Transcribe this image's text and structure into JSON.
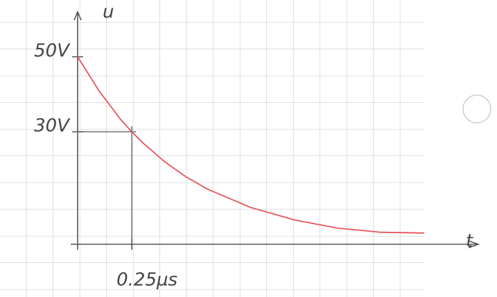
{
  "chart_data": {
    "type": "line",
    "x_label": "t",
    "y_label": "u",
    "x": [
      0,
      0.1,
      0.2,
      0.25,
      0.3,
      0.4,
      0.5,
      0.6,
      0.8,
      1.0,
      1.2,
      1.4,
      1.6
    ],
    "series": [
      {
        "color": "#e8545a",
        "values": [
          50,
          40.8,
          33.2,
          30,
          27.1,
          22.1,
          18.0,
          14.7,
          9.8,
          6.5,
          4.3,
          3.2,
          3
        ]
      }
    ],
    "xlim": [
      0,
      1.85
    ],
    "ylim": [
      0,
      62
    ],
    "xticks": [
      {
        "value": 0.25,
        "label": "0.25µs"
      }
    ],
    "yticks": [
      {
        "value": 50,
        "label": "50V"
      },
      {
        "value": 30,
        "label": "30V"
      }
    ]
  }
}
